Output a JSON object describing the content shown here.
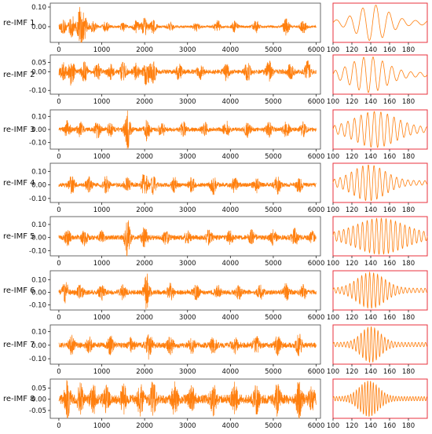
{
  "chart_data": {
    "type": "line",
    "colors": {
      "signal": "#ff7f0e",
      "zoom_frame": "#e8323c",
      "axes_frame": "#444444"
    },
    "main_x_ticks": [
      0,
      1000,
      2000,
      3000,
      4000,
      5000,
      6000
    ],
    "main_xlim": [
      -200,
      6100
    ],
    "zoom_x_ticks": [
      100,
      120,
      140,
      160,
      180
    ],
    "zoom_xlim": [
      100,
      200
    ],
    "rows": [
      {
        "label": "re-IMF 1",
        "y_ticks": [
          "0.10",
          "0.00"
        ],
        "y_tick_values": [
          0.1,
          0.0
        ],
        "ylim": [
          -0.08,
          0.12
        ],
        "bursts": [
          [
            100,
            0.035
          ],
          [
            300,
            0.06
          ],
          [
            500,
            0.1
          ],
          [
            600,
            0.05
          ],
          [
            800,
            0.03
          ],
          [
            1100,
            0.025
          ],
          [
            1500,
            0.02
          ],
          [
            1800,
            0.03
          ],
          [
            2000,
            0.045
          ],
          [
            2200,
            0.035
          ],
          [
            2600,
            0.02
          ],
          [
            3200,
            0.02
          ],
          [
            3700,
            0.03
          ],
          [
            4100,
            0.025
          ],
          [
            4600,
            0.03
          ],
          [
            5300,
            0.04
          ],
          [
            5700,
            0.03
          ]
        ],
        "noise": 0.006,
        "zoom": {
          "amp": 0.035,
          "period": 14,
          "center": 142,
          "width": 22
        }
      },
      {
        "label": "re-IMF 2",
        "y_ticks": [
          "0.05",
          "0.00",
          "-0.10"
        ],
        "y_tick_values": [
          0.05,
          0.0,
          -0.1
        ],
        "ylim": [
          -0.12,
          0.09
        ],
        "bursts": [
          [
            100,
            0.04
          ],
          [
            300,
            0.07
          ],
          [
            600,
            0.05
          ],
          [
            900,
            0.04
          ],
          [
            1200,
            0.035
          ],
          [
            1500,
            0.05
          ],
          [
            1800,
            0.04
          ],
          [
            2050,
            0.08
          ],
          [
            2200,
            0.05
          ],
          [
            2800,
            0.04
          ],
          [
            3300,
            0.035
          ],
          [
            3900,
            0.04
          ],
          [
            4400,
            0.045
          ],
          [
            4900,
            0.05
          ],
          [
            5400,
            0.04
          ],
          [
            5800,
            0.05
          ]
        ],
        "noise": 0.012,
        "zoom": {
          "amp": 0.06,
          "period": 10,
          "center": 138,
          "width": 25
        }
      },
      {
        "label": "re-IMF 3",
        "y_ticks": [
          "0.10",
          "0.00",
          "-0.10"
        ],
        "y_tick_values": [
          0.1,
          0.0,
          -0.1
        ],
        "ylim": [
          -0.15,
          0.15
        ],
        "bursts": [
          [
            200,
            0.06
          ],
          [
            500,
            0.05
          ],
          [
            900,
            0.06
          ],
          [
            1200,
            0.05
          ],
          [
            1600,
            0.14
          ],
          [
            2050,
            0.08
          ],
          [
            2400,
            0.05
          ],
          [
            2900,
            0.05
          ],
          [
            3400,
            0.05
          ],
          [
            3900,
            0.06
          ],
          [
            4400,
            0.05
          ],
          [
            4900,
            0.05
          ],
          [
            5300,
            0.06
          ],
          [
            5700,
            0.05
          ]
        ],
        "noise": 0.015,
        "zoom": {
          "amp": 0.08,
          "period": 7,
          "center": 145,
          "width": 30
        }
      },
      {
        "label": "re-IMF 4",
        "y_ticks": [
          "0.10",
          "0.00",
          "-0.10"
        ],
        "y_tick_values": [
          0.1,
          0.0,
          -0.1
        ],
        "ylim": [
          -0.13,
          0.16
        ],
        "bursts": [
          [
            300,
            0.06
          ],
          [
            700,
            0.05
          ],
          [
            1100,
            0.06
          ],
          [
            1600,
            0.05
          ],
          [
            2000,
            0.09
          ],
          [
            2200,
            0.06
          ],
          [
            2700,
            0.05
          ],
          [
            3100,
            0.05
          ],
          [
            3600,
            0.06
          ],
          [
            4100,
            0.05
          ],
          [
            4600,
            0.05
          ],
          [
            5100,
            0.06
          ],
          [
            5600,
            0.05
          ]
        ],
        "noise": 0.015,
        "zoom": {
          "amp": 0.07,
          "period": 6,
          "center": 138,
          "width": 24
        }
      },
      {
        "label": "re-IMF 5",
        "y_ticks": [
          "0.10",
          "0.00",
          "-0.10"
        ],
        "y_tick_values": [
          0.1,
          0.0,
          -0.1
        ],
        "ylim": [
          -0.14,
          0.16
        ],
        "bursts": [
          [
            200,
            0.05
          ],
          [
            600,
            0.05
          ],
          [
            1000,
            0.04
          ],
          [
            1600,
            0.13
          ],
          [
            2000,
            0.07
          ],
          [
            2500,
            0.05
          ],
          [
            3000,
            0.05
          ],
          [
            3500,
            0.05
          ],
          [
            4000,
            0.05
          ],
          [
            4500,
            0.05
          ],
          [
            5000,
            0.05
          ],
          [
            5500,
            0.06
          ],
          [
            5900,
            0.04
          ]
        ],
        "noise": 0.018,
        "zoom": {
          "amp": 0.08,
          "period": 5,
          "center": 150,
          "width": 35
        }
      },
      {
        "label": "re-IMF 6",
        "y_ticks": [
          "0.10",
          "0.00",
          "-0.10"
        ],
        "y_tick_values": [
          0.1,
          0.0,
          -0.1
        ],
        "ylim": [
          -0.14,
          0.17
        ],
        "bursts": [
          [
            150,
            0.08
          ],
          [
            500,
            0.05
          ],
          [
            1000,
            0.05
          ],
          [
            1500,
            0.05
          ],
          [
            2050,
            0.14
          ],
          [
            2600,
            0.06
          ],
          [
            3200,
            0.05
          ],
          [
            3700,
            0.05
          ],
          [
            4200,
            0.05
          ],
          [
            4700,
            0.05
          ],
          [
            5300,
            0.06
          ],
          [
            5700,
            0.05
          ]
        ],
        "noise": 0.018,
        "zoom": {
          "amp": 0.085,
          "period": 4.2,
          "center": 140,
          "width": 20
        }
      },
      {
        "label": "re-IMF 7",
        "y_ticks": [
          "0.10",
          "0.00",
          "-0.10"
        ],
        "y_tick_values": [
          0.1,
          0.0,
          -0.1
        ],
        "ylim": [
          -0.14,
          0.15
        ],
        "bursts": [
          [
            300,
            0.06
          ],
          [
            700,
            0.05
          ],
          [
            1200,
            0.06
          ],
          [
            1700,
            0.05
          ],
          [
            2100,
            0.1
          ],
          [
            2600,
            0.06
          ],
          [
            3100,
            0.05
          ],
          [
            3600,
            0.06
          ],
          [
            4100,
            0.05
          ],
          [
            4600,
            0.06
          ],
          [
            5100,
            0.06
          ],
          [
            5600,
            0.07
          ]
        ],
        "noise": 0.02,
        "zoom": {
          "amp": 0.08,
          "period": 3.6,
          "center": 140,
          "width": 14
        }
      },
      {
        "label": "re-IMF 8",
        "y_ticks": [
          "0.05",
          "0.00",
          "-0.05"
        ],
        "y_tick_values": [
          0.05,
          0.0,
          -0.05
        ],
        "ylim": [
          -0.085,
          0.09
        ],
        "bursts": [
          [
            200,
            0.07
          ],
          [
            500,
            0.06
          ],
          [
            800,
            0.06
          ],
          [
            1100,
            0.05
          ],
          [
            1500,
            0.06
          ],
          [
            1900,
            0.06
          ],
          [
            2200,
            0.07
          ],
          [
            2700,
            0.06
          ],
          [
            3100,
            0.05
          ],
          [
            3600,
            0.06
          ],
          [
            4100,
            0.06
          ],
          [
            4600,
            0.06
          ],
          [
            5100,
            0.06
          ],
          [
            5600,
            0.07
          ],
          [
            5900,
            0.05
          ]
        ],
        "noise": 0.02,
        "zoom": {
          "amp": 0.07,
          "period": 3,
          "center": 138,
          "width": 14
        }
      }
    ]
  }
}
